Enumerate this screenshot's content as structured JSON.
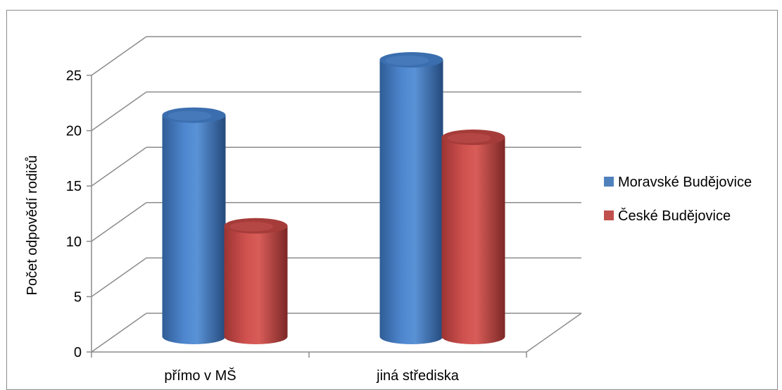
{
  "chart_data": {
    "type": "bar",
    "style": "3d-cylinder",
    "categories": [
      "přímo v MŠ",
      "jiná střediska"
    ],
    "series": [
      {
        "name": "Moravské Budějovice",
        "values": [
          20,
          25
        ],
        "color": "#4f81bd"
      },
      {
        "name": "České Budějovice",
        "values": [
          10,
          18
        ],
        "color": "#c0504d"
      }
    ],
    "ylabel": "Počet odpovědí rodičů",
    "xlabel": "",
    "ylim": [
      0,
      25
    ],
    "yticks": [
      0,
      5,
      10,
      15,
      20,
      25
    ],
    "grid": true,
    "legend_position": "right"
  }
}
